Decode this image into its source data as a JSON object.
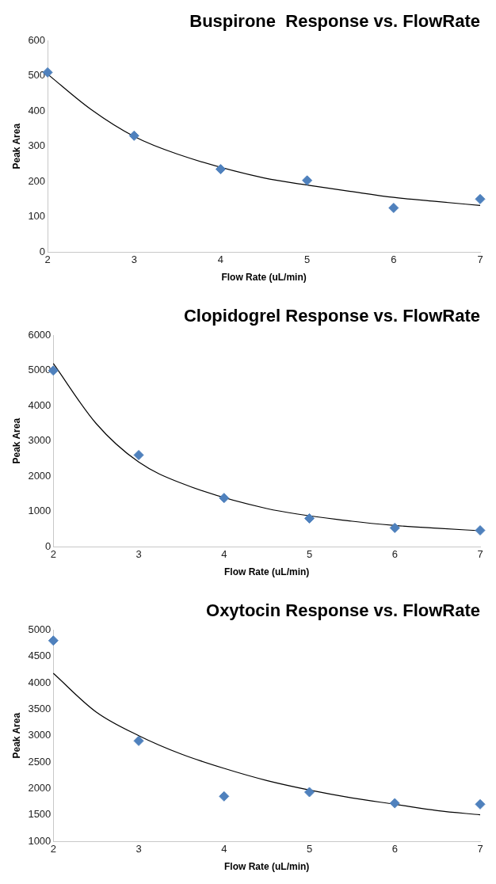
{
  "chart_data": [
    {
      "type": "scatter",
      "title": "Buspirone  Response vs. FlowRate",
      "xlabel": "Flow Rate (uL/min)",
      "ylabel": "Peak Area",
      "xlim": [
        2,
        7
      ],
      "xticks": [
        2,
        3,
        4,
        5,
        6,
        7
      ],
      "ylim": [
        0,
        600
      ],
      "yticks": [
        0,
        100,
        200,
        300,
        400,
        500,
        600
      ],
      "grid": false,
      "legend": false,
      "marker": "diamond",
      "series": [
        {
          "type": "scatter",
          "color": "#4f81bd",
          "x": [
            2,
            3,
            4,
            5,
            6,
            7
          ],
          "values": [
            510,
            330,
            235,
            203,
            125,
            150
          ]
        },
        {
          "type": "line",
          "color": "#000000",
          "marker": "none",
          "x": [
            2,
            2.5,
            3,
            3.5,
            4.5,
            5,
            5.5,
            6,
            6.5,
            7
          ],
          "values": [
            505,
            405,
            328,
            278,
            210,
            190,
            172,
            155,
            143,
            132
          ]
        }
      ]
    },
    {
      "type": "scatter",
      "title": "Clopidogrel Response vs. FlowRate",
      "xlabel": "Flow Rate (uL/min)",
      "ylabel": "Peak Area",
      "xlim": [
        2,
        7
      ],
      "xticks": [
        2,
        3,
        4,
        5,
        6,
        7
      ],
      "ylim": [
        0,
        6000
      ],
      "yticks": [
        0,
        1000,
        2000,
        3000,
        4000,
        5000,
        6000
      ],
      "grid": false,
      "legend": false,
      "marker": "diamond",
      "series": [
        {
          "type": "scatter",
          "color": "#4f81bd",
          "x": [
            2,
            3,
            4,
            5,
            6,
            7
          ],
          "values": [
            5000,
            2600,
            1380,
            800,
            530,
            460
          ]
        },
        {
          "type": "line",
          "color": "#000000",
          "marker": "none",
          "x": [
            2,
            2.5,
            3,
            3.5,
            4.5,
            5.5,
            6,
            6.5,
            7
          ],
          "values": [
            5200,
            3500,
            2400,
            1800,
            1080,
            720,
            600,
            520,
            450
          ]
        }
      ]
    },
    {
      "type": "scatter",
      "title": "Oxytocin Response vs. FlowRate",
      "xlabel": "Flow Rate (uL/min)",
      "ylabel": "Peak Area",
      "xlim": [
        2,
        7
      ],
      "xticks": [
        2,
        3,
        4,
        5,
        6,
        7
      ],
      "ylim": [
        1000,
        5000
      ],
      "yticks": [
        1000,
        1500,
        2000,
        2500,
        3000,
        3500,
        4000,
        4500,
        5000
      ],
      "grid": false,
      "legend": false,
      "marker": "diamond",
      "series": [
        {
          "type": "scatter",
          "color": "#4f81bd",
          "x": [
            2,
            3,
            4,
            5,
            6,
            7
          ],
          "values": [
            4800,
            2900,
            1850,
            1930,
            1720,
            1700
          ]
        },
        {
          "type": "line",
          "color": "#000000",
          "marker": "none",
          "x": [
            2,
            2.5,
            3,
            3.5,
            4,
            4.5,
            5,
            5.5,
            6,
            6.5,
            7
          ],
          "values": [
            4180,
            3450,
            3000,
            2650,
            2380,
            2150,
            1970,
            1820,
            1700,
            1580,
            1500
          ]
        }
      ]
    }
  ]
}
